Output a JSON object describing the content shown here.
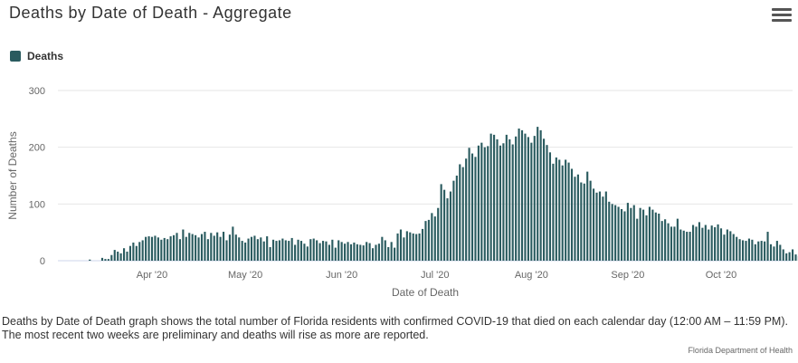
{
  "chart_data": {
    "type": "bar",
    "title": "Deaths by Date of Death - Aggregate",
    "xlabel": "Date of Death",
    "ylabel": "Number of Deaths",
    "ylim": [
      0,
      300
    ],
    "yticks": [
      "0",
      "100",
      "200",
      "300"
    ],
    "x_ticks": [
      {
        "label": "Apr '20",
        "date": "2020-04-01"
      },
      {
        "label": "May '20",
        "date": "2020-05-01"
      },
      {
        "label": "Jun '20",
        "date": "2020-06-01"
      },
      {
        "label": "Jul '20",
        "date": "2020-07-01"
      },
      {
        "label": "Aug '20",
        "date": "2020-08-01"
      },
      {
        "label": "Sep '20",
        "date": "2020-09-01"
      },
      {
        "label": "Oct '20",
        "date": "2020-10-01"
      }
    ],
    "grid": true,
    "legend_position": "top-left",
    "series": [
      {
        "name": "Deaths",
        "color": "#2a5b5f",
        "start_date": "2020-03-12",
        "values": [
          2,
          0,
          0,
          0,
          5,
          3,
          3,
          10,
          19,
          16,
          13,
          22,
          16,
          26,
          32,
          26,
          33,
          36,
          42,
          43,
          42,
          44,
          41,
          37,
          40,
          38,
          43,
          45,
          49,
          38,
          55,
          42,
          49,
          47,
          45,
          41,
          47,
          51,
          38,
          49,
          44,
          50,
          42,
          51,
          36,
          46,
          60,
          46,
          41,
          35,
          32,
          39,
          42,
          44,
          38,
          41,
          34,
          43,
          24,
          37,
          35,
          36,
          39,
          36,
          35,
          40,
          28,
          37,
          35,
          30,
          25,
          38,
          39,
          36,
          31,
          35,
          34,
          28,
          37,
          23,
          36,
          33,
          30,
          33,
          29,
          32,
          29,
          28,
          27,
          33,
          31,
          22,
          28,
          30,
          42,
          36,
          24,
          33,
          23,
          48,
          55,
          41,
          52,
          50,
          48,
          47,
          48,
          56,
          70,
          72,
          84,
          78,
          93,
          135,
          125,
          110,
          122,
          141,
          150,
          170,
          165,
          180,
          199,
          189,
          183,
          203,
          208,
          200,
          202,
          224,
          222,
          214,
          203,
          207,
          222,
          214,
          205,
          219,
          233,
          230,
          224,
          218,
          208,
          220,
          236,
          230,
          215,
          204,
          191,
          171,
          182,
          178,
          168,
          178,
          173,
          162,
          148,
          152,
          138,
          136,
          157,
          141,
          127,
          120,
          122,
          113,
          122,
          104,
          100,
          98,
          95,
          91,
          87,
          102,
          93,
          98,
          74,
          93,
          90,
          80,
          95,
          90,
          85,
          83,
          70,
          73,
          66,
          60,
          60,
          74,
          55,
          53,
          51,
          51,
          63,
          60,
          68,
          58,
          63,
          55,
          62,
          59,
          64,
          57,
          46,
          55,
          52,
          47,
          42,
          38,
          36,
          35,
          39,
          37,
          29,
          34,
          35,
          34,
          51,
          29,
          25,
          35,
          28,
          20,
          13,
          15,
          20,
          11,
          8,
          10,
          15,
          6
        ]
      }
    ],
    "footnote": "Deaths by Date of Death graph shows the total number of Florida residents with confirmed COVID-19 that died on each calendar day (12:00 AM – 11:59 PM). The most recent two weeks are preliminary and deaths will rise as more are reported.",
    "credit": "Florida Department of Health"
  },
  "menu": {
    "icon": "hamburger-menu-icon"
  }
}
